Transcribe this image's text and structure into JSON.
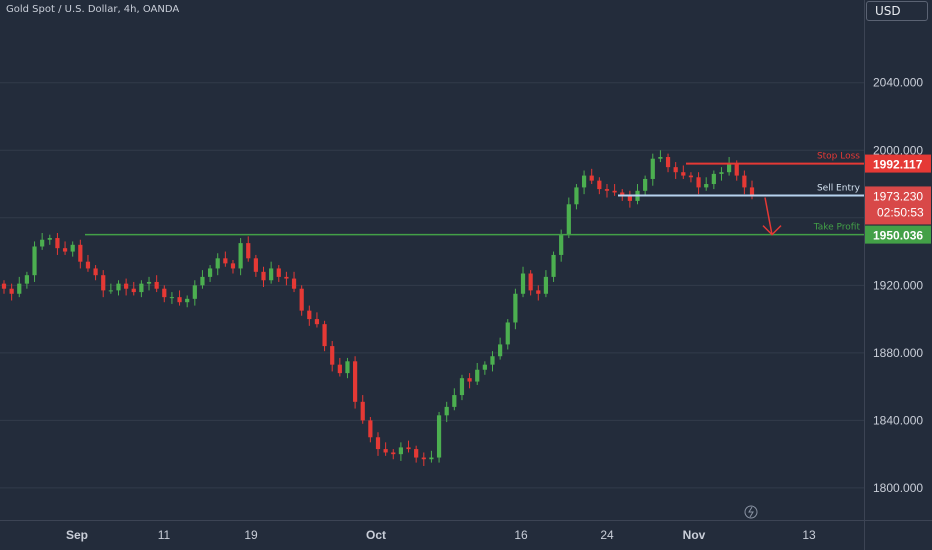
{
  "header": {
    "title": "Gold Spot / U.S. Dollar, 4h, OANDA",
    "currency": "USD"
  },
  "colors": {
    "background": "#232c3b",
    "grid": "#323b4b",
    "bull": "#4caf50",
    "bear": "#e53935",
    "stop_loss": "#e53935",
    "sell_entry": "#b7d3ef",
    "take_profit": "#43a047",
    "axis_text": "#c9ced8",
    "countdown_bg": "#d84848"
  },
  "chart_data": {
    "type": "line",
    "title": "Gold Spot / U.S. Dollar, 4h, OANDA",
    "xlabel": "",
    "ylabel": "",
    "ylim": [
      1781,
      2089
    ],
    "y_ticks": [
      1800,
      1840,
      1880,
      1920,
      1960,
      2000,
      2040
    ],
    "y_tick_labels": [
      "1800.000",
      "1840.000",
      "1880.000",
      "1920.000",
      "",
      "2000.000",
      "2040.000"
    ],
    "x_tick_labels": [
      "Sep",
      "11",
      "19",
      "Oct",
      "16",
      "24",
      "Nov",
      "13"
    ],
    "grid": true,
    "series": [
      {
        "values": [
          1918,
          1915,
          1921,
          1926,
          1943,
          1947,
          1948,
          1942,
          1940,
          1944,
          1934,
          1930,
          1926,
          1917,
          1917,
          1921,
          1918,
          1916,
          1921,
          1922,
          1918,
          1913,
          1913,
          1910,
          1912,
          1920,
          1925,
          1930,
          1936,
          1933,
          1930,
          1945,
          1936,
          1928,
          1923,
          1930,
          1925,
          1924,
          1918,
          1905,
          1900,
          1897,
          1884,
          1873,
          1868,
          1875,
          1851,
          1840,
          1830,
          1823,
          1821,
          1820,
          1824,
          1823,
          1818,
          1817,
          1818,
          1843,
          1848,
          1855,
          1865,
          1863,
          1870,
          1873,
          1878,
          1885,
          1898,
          1915,
          1927,
          1917,
          1915,
          1925,
          1938,
          1950,
          1968,
          1978,
          1985,
          1982,
          1977,
          1976,
          1975,
          1973,
          1970,
          1976,
          1983,
          1995,
          1996,
          1990,
          1987,
          1985,
          1984,
          1978,
          1980,
          1986,
          1987,
          1992,
          1985,
          1978,
          1973
        ]
      }
    ],
    "levels": [
      {
        "label": "Stop Loss",
        "value": 1992.117,
        "price_label": "1992.117"
      },
      {
        "label": "Sell Entry",
        "value": 1973.23,
        "price_label": "1973.230",
        "countdown": "02:50:53"
      },
      {
        "label": "Take Profit",
        "value": 1950.036,
        "price_label": "1950.036"
      }
    ]
  }
}
